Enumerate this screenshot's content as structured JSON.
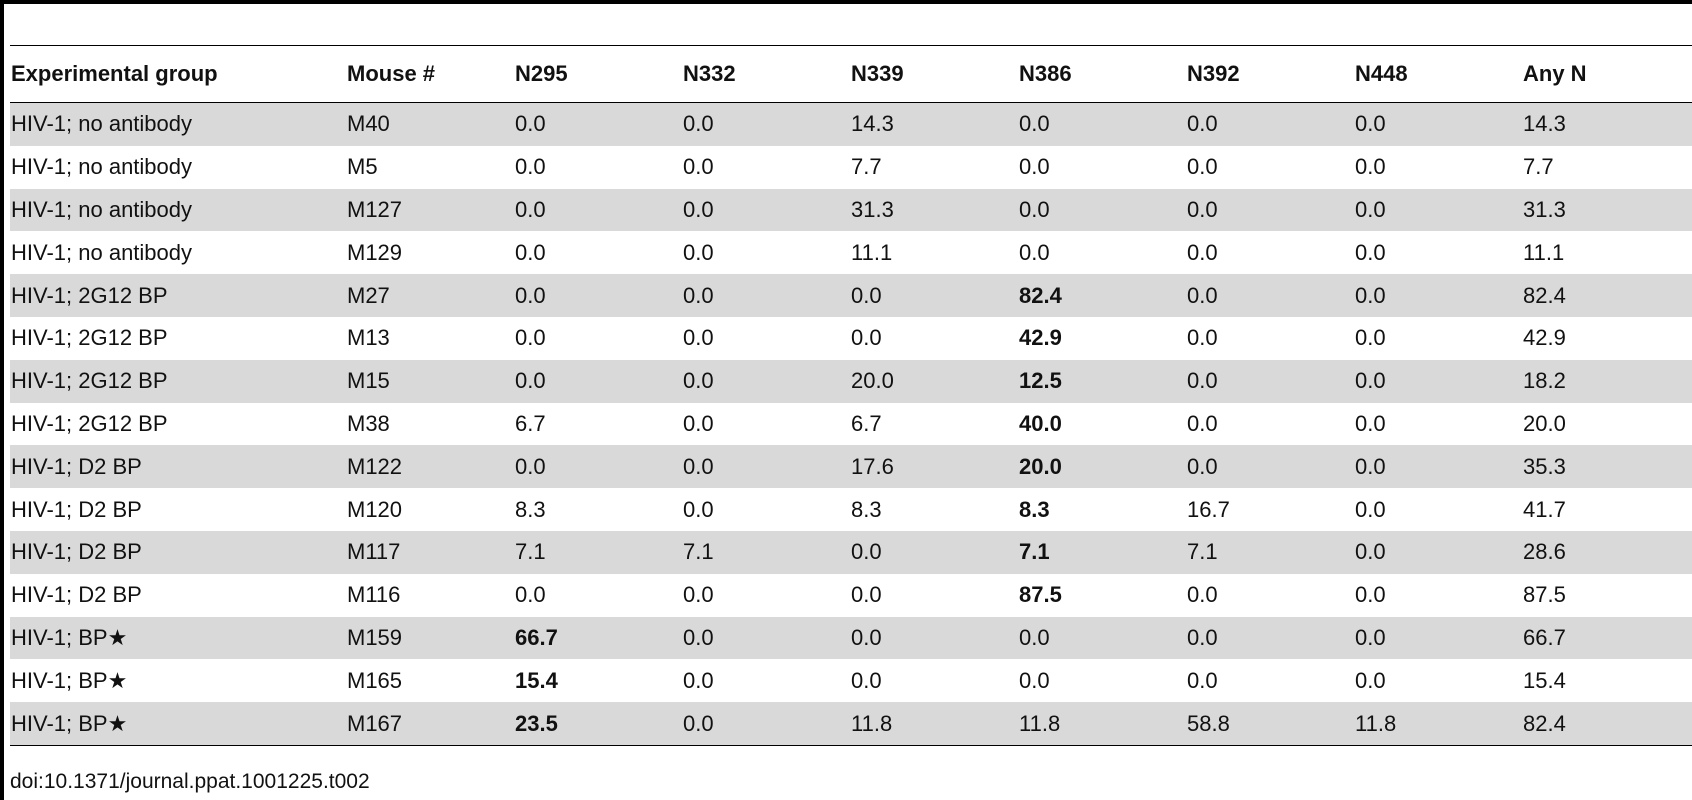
{
  "table": {
    "headers": [
      "Experimental group",
      "Mouse #",
      "N295",
      "N332",
      "N339",
      "N386",
      "N392",
      "N448",
      "Any N"
    ],
    "rows": [
      {
        "cells": [
          "HIV-1; no antibody",
          "M40",
          "0.0",
          "0.0",
          "14.3",
          "0.0",
          "0.0",
          "0.0",
          "14.3"
        ],
        "bold": []
      },
      {
        "cells": [
          "HIV-1; no antibody",
          "M5",
          "0.0",
          "0.0",
          "7.7",
          "0.0",
          "0.0",
          "0.0",
          "7.7"
        ],
        "bold": []
      },
      {
        "cells": [
          "HIV-1; no antibody",
          "M127",
          "0.0",
          "0.0",
          "31.3",
          "0.0",
          "0.0",
          "0.0",
          "31.3"
        ],
        "bold": []
      },
      {
        "cells": [
          "HIV-1; no antibody",
          "M129",
          "0.0",
          "0.0",
          "11.1",
          "0.0",
          "0.0",
          "0.0",
          "11.1"
        ],
        "bold": []
      },
      {
        "cells": [
          "HIV-1; 2G12 BP",
          "M27",
          "0.0",
          "0.0",
          "0.0",
          "82.4",
          "0.0",
          "0.0",
          "82.4"
        ],
        "bold": [
          5
        ]
      },
      {
        "cells": [
          "HIV-1; 2G12 BP",
          "M13",
          "0.0",
          "0.0",
          "0.0",
          "42.9",
          "0.0",
          "0.0",
          "42.9"
        ],
        "bold": [
          5
        ]
      },
      {
        "cells": [
          "HIV-1; 2G12 BP",
          "M15",
          "0.0",
          "0.0",
          "20.0",
          "12.5",
          "0.0",
          "0.0",
          "18.2"
        ],
        "bold": [
          5
        ]
      },
      {
        "cells": [
          "HIV-1; 2G12 BP",
          "M38",
          "6.7",
          "0.0",
          "6.7",
          "40.0",
          "0.0",
          "0.0",
          "20.0"
        ],
        "bold": [
          5
        ]
      },
      {
        "cells": [
          "HIV-1; D2 BP",
          "M122",
          "0.0",
          "0.0",
          "17.6",
          "20.0",
          "0.0",
          "0.0",
          "35.3"
        ],
        "bold": [
          5
        ]
      },
      {
        "cells": [
          "HIV-1; D2 BP",
          "M120",
          "8.3",
          "0.0",
          "8.3",
          "8.3",
          "16.7",
          "0.0",
          "41.7"
        ],
        "bold": [
          5
        ]
      },
      {
        "cells": [
          "HIV-1; D2 BP",
          "M117",
          "7.1",
          "7.1",
          "0.0",
          "7.1",
          "7.1",
          "0.0",
          "28.6"
        ],
        "bold": [
          5
        ]
      },
      {
        "cells": [
          "HIV-1; D2 BP",
          "M116",
          "0.0",
          "0.0",
          "0.0",
          "87.5",
          "0.0",
          "0.0",
          "87.5"
        ],
        "bold": [
          5
        ]
      },
      {
        "cells": [
          "HIV-1; BP★",
          "M159",
          "66.7",
          "0.0",
          "0.0",
          "0.0",
          "0.0",
          "0.0",
          "66.7"
        ],
        "bold": [
          2
        ]
      },
      {
        "cells": [
          "HIV-1; BP★",
          "M165",
          "15.4",
          "0.0",
          "0.0",
          "0.0",
          "0.0",
          "0.0",
          "15.4"
        ],
        "bold": [
          2
        ]
      },
      {
        "cells": [
          "HIV-1; BP★",
          "M167",
          "23.5",
          "0.0",
          "11.8",
          "11.8",
          "58.8",
          "11.8",
          "82.4"
        ],
        "bold": [
          2
        ]
      }
    ]
  },
  "footer": {
    "doi": "doi:10.1371/journal.ppat.1001225.t002"
  },
  "colors": {
    "stripe": "#d9d9d9",
    "rule": "#000000",
    "text": "#111111"
  }
}
